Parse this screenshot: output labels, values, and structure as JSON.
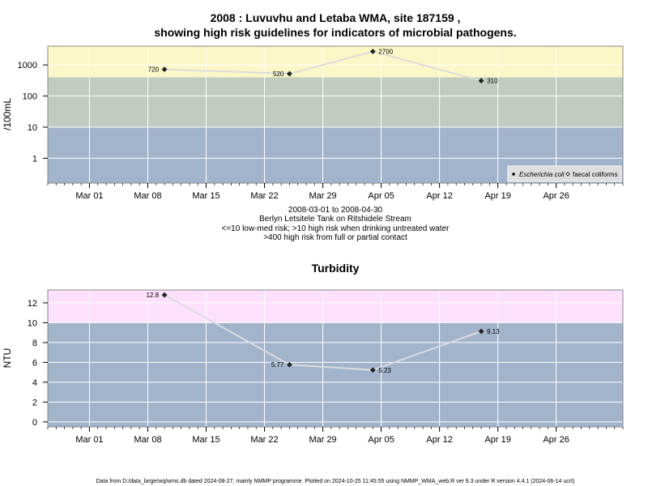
{
  "figure": {
    "title_line1": "2008 : Luvuvhu and Letaba WMA, site 187159 ,",
    "title_line2": "showing high risk guidelines for indicators of microbial pathogens.",
    "subtitle_lines": [
      "2008-03-01 to 2008-04-30",
      "Berlyn Letsitele Tank on Ritshidele Stream",
      "<=10 low-med risk; >10 high risk when drinking untreated water",
      ">400 high risk from full or partial contact"
    ],
    "footer": "Data from D:/data_large/wq/wms.db dated 2024-08-27, mainly NMMP programme. Plotted on 2024-10-25 11:45:55 using NMMP_WMA_web.R ver 9.3 under R version 4.4.1 (2024-06-14 ucrt)"
  },
  "colors": {
    "band_blue": "#a2b4cc",
    "band_green": "#c1cbbf",
    "band_yellow": "#fcf7c6",
    "band_pink": "#fce0fc",
    "grid": "#ffffff",
    "line": "#dcdcdc",
    "point": "#222222"
  },
  "chart_data": [
    {
      "type": "scatter",
      "title": "",
      "xlabel": "",
      "ylabel": "/100mL",
      "y_scale": "log",
      "ylim": [
        0.16,
        4000
      ],
      "x_range": [
        "2008-02-25",
        "2008-05-04"
      ],
      "x_ticks": [
        "2008-03-01",
        "2008-03-08",
        "2008-03-15",
        "2008-03-22",
        "2008-03-29",
        "2008-04-05",
        "2008-04-12",
        "2008-04-19",
        "2008-04-26"
      ],
      "x_tick_labels": [
        "Mar 01",
        "Mar 08",
        "Mar 15",
        "Mar 22",
        "Mar 29",
        "Apr 05",
        "Apr 12",
        "Apr 19",
        "Apr 26"
      ],
      "y_ticks": [
        1,
        10,
        100,
        1000
      ],
      "y_tick_labels": [
        "1",
        "10",
        "100",
        "1000"
      ],
      "bands": [
        {
          "from": 0.16,
          "to": 10,
          "color": "#a2b4cc"
        },
        {
          "from": 10,
          "to": 400,
          "color": "#c1cbbf"
        },
        {
          "from": 400,
          "to": 4000,
          "color": "#fcf7c6"
        }
      ],
      "series": [
        {
          "name": "Escherichia coli",
          "marker": "diamond-filled",
          "x": [
            "2008-03-10",
            "2008-03-25",
            "2008-04-04",
            "2008-04-17"
          ],
          "y": [
            720,
            520,
            2700,
            310
          ],
          "labels": [
            "720",
            "520",
            "2700",
            "310"
          ],
          "label_side": [
            "left",
            "left",
            "right",
            "right"
          ]
        }
      ],
      "legend": {
        "placement": "bottom-right",
        "entries": [
          {
            "label": "Escherichia coli",
            "marker": "diamond-filled"
          },
          {
            "label": "faecal coliforms",
            "marker": "diamond-open"
          }
        ]
      }
    },
    {
      "type": "scatter",
      "title": "Turbidity",
      "xlabel": "",
      "ylabel": "NTU",
      "ylim": [
        -0.5,
        13.3
      ],
      "x_range": [
        "2008-02-25",
        "2008-05-04"
      ],
      "x_ticks": [
        "2008-03-01",
        "2008-03-08",
        "2008-03-15",
        "2008-03-22",
        "2008-03-29",
        "2008-04-05",
        "2008-04-12",
        "2008-04-19",
        "2008-04-26"
      ],
      "x_tick_labels": [
        "Mar 01",
        "Mar 08",
        "Mar 15",
        "Mar 22",
        "Mar 29",
        "Apr 05",
        "Apr 12",
        "Apr 19",
        "Apr 26"
      ],
      "y_ticks": [
        0,
        2,
        4,
        6,
        8,
        10,
        12
      ],
      "y_tick_labels": [
        "0",
        "2",
        "4",
        "6",
        "8",
        "10",
        "12"
      ],
      "bands": [
        {
          "from": -0.5,
          "to": 10,
          "color": "#a2b4cc"
        },
        {
          "from": 10,
          "to": 13.3,
          "color": "#fce0fc"
        }
      ],
      "series": [
        {
          "marker": "diamond-filled",
          "x": [
            "2008-03-10",
            "2008-03-25",
            "2008-04-04",
            "2008-04-17"
          ],
          "y": [
            12.8,
            5.77,
            5.23,
            9.13
          ],
          "labels": [
            "12.8",
            "5.77",
            "5.23",
            "9.13"
          ],
          "label_side": [
            "left",
            "left",
            "right",
            "right"
          ]
        }
      ]
    }
  ]
}
